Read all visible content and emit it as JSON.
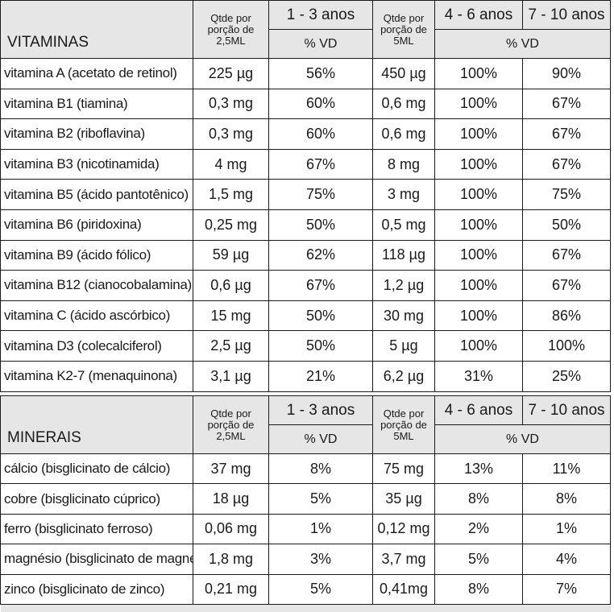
{
  "vitaminas": {
    "section_title": "VITAMINAS",
    "qtde_25": "Qtde por porção de 2,5ML",
    "age_1_3": "1 - 3 anos",
    "qtde_5": "Qtde por porção de 5ML",
    "age_4_6": "4 - 6 anos",
    "age_7_10": "7 - 10 anos",
    "vd_1": "% VD",
    "vd_2": "% VD",
    "rows": [
      {
        "name": "vitamina A (acetato de retinol)",
        "q1": "225 µg",
        "v1": "56%",
        "q2": "450 µg",
        "v2": "100%",
        "v3": "90%"
      },
      {
        "name": "vitamina B1 (tiamina)",
        "q1": "0,3 mg",
        "v1": "60%",
        "q2": "0,6 mg",
        "v2": "100%",
        "v3": "67%"
      },
      {
        "name": "vitamina B2 (riboflavina)",
        "q1": "0,3 mg",
        "v1": "60%",
        "q2": "0,6 mg",
        "v2": "100%",
        "v3": "67%"
      },
      {
        "name": "vitamina B3 (nicotinamida)",
        "q1": "4 mg",
        "v1": "67%",
        "q2": "8 mg",
        "v2": "100%",
        "v3": "67%"
      },
      {
        "name": "vitamina B5 (ácido pantotênico)",
        "q1": "1,5 mg",
        "v1": "75%",
        "q2": "3 mg",
        "v2": "100%",
        "v3": "75%"
      },
      {
        "name": "vitamina B6 (piridoxina)",
        "q1": "0,25 mg",
        "v1": "50%",
        "q2": "0,5 mg",
        "v2": "100%",
        "v3": "50%"
      },
      {
        "name": "vitamina B9 (ácido fólico)",
        "q1": "59 µg",
        "v1": "62%",
        "q2": "118 µg",
        "v2": "100%",
        "v3": "67%"
      },
      {
        "name": "vitamina B12 (cianocobalamina)",
        "q1": "0,6 µg",
        "v1": "67%",
        "q2": "1,2 µg",
        "v2": "100%",
        "v3": "67%"
      },
      {
        "name": "vitamina C (ácido ascórbico)",
        "q1": "15 mg",
        "v1": "50%",
        "q2": "30 mg",
        "v2": "100%",
        "v3": "86%"
      },
      {
        "name": "vitamina D3 (colecalciferol)",
        "q1": "2,5 µg",
        "v1": "50%",
        "q2": "5 µg",
        "v2": "100%",
        "v3": "100%"
      },
      {
        "name": "vitamina K2-7 (menaquinona)",
        "q1": "3,1 µg",
        "v1": "21%",
        "q2": "6,2 µg",
        "v2": "31%",
        "v3": "25%"
      }
    ]
  },
  "minerais": {
    "section_title": "MINERAIS",
    "qtde_25": "Qtde por porção de 2,5ML",
    "age_1_3": "1 - 3 anos",
    "qtde_5": "Qtde por porção de 5ML",
    "age_4_6": "4 - 6 anos",
    "age_7_10": "7 - 10 anos",
    "vd_1": "% VD",
    "vd_2": "% VD",
    "rows": [
      {
        "name": "cálcio (bisglicinato de cálcio)",
        "q1": "37 mg",
        "v1": "8%",
        "q2": "75 mg",
        "v2": "13%",
        "v3": "11%"
      },
      {
        "name": "cobre (bisglicinato cúprico)",
        "q1": "18 µg",
        "v1": "5%",
        "q2": "35 µg",
        "v2": "8%",
        "v3": "8%"
      },
      {
        "name": "ferro (bisglicinato ferroso)",
        "q1": "0,06 mg",
        "v1": "1%",
        "q2": "0,12 mg",
        "v2": "2%",
        "v3": "1%"
      },
      {
        "name": "magnésio (bisglicinato de magnésio)",
        "q1": "1,8 mg",
        "v1": "3%",
        "q2": "3,7 mg",
        "v2": "5%",
        "v3": "4%"
      },
      {
        "name": "zinco (bisglicinato de zinco)",
        "q1": "0,21 mg",
        "v1": "5%",
        "q2": "0,41mg",
        "v2": "8%",
        "v3": "7%"
      }
    ]
  }
}
